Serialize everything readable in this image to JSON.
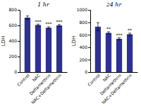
{
  "chart_data": [
    {
      "type": "bar",
      "title": "1 hr",
      "y_label": "LDH",
      "categories": [
        "Control",
        "NAC",
        "Deltamethrin",
        "NAC+Deltamethrin"
      ],
      "values": [
        700,
        605,
        570,
        600
      ],
      "errors": [
        22,
        12,
        12,
        12
      ],
      "color": "#2e3191",
      "ylim": [
        0,
        800
      ],
      "yticks": [
        0,
        200,
        400,
        600,
        800
      ],
      "annotations": [
        {
          "x": "NAC",
          "text": "***"
        },
        {
          "x": "Deltamethrin",
          "text": "***"
        },
        {
          "x": "NAC+Deltamethrin",
          "text": "***"
        }
      ]
    },
    {
      "type": "bar",
      "title": "24 hr",
      "y_label": "LDH",
      "categories": [
        "Control",
        "NAC",
        "Deltamethrin",
        "NAC+Deltamethrin"
      ],
      "values": [
        730,
        630,
        535,
        608
      ],
      "errors": [
        65,
        18,
        18,
        18
      ],
      "color": "#2e3191",
      "ylim": [
        0,
        1000
      ],
      "yticks": [
        0,
        200,
        400,
        600,
        800,
        1000
      ],
      "annotations": [
        {
          "x": "NAC",
          "text": "**"
        },
        {
          "x": "Deltamethrin",
          "text": "***"
        },
        {
          "x": "NAC+Deltamethrin",
          "text": "**"
        }
      ]
    }
  ]
}
